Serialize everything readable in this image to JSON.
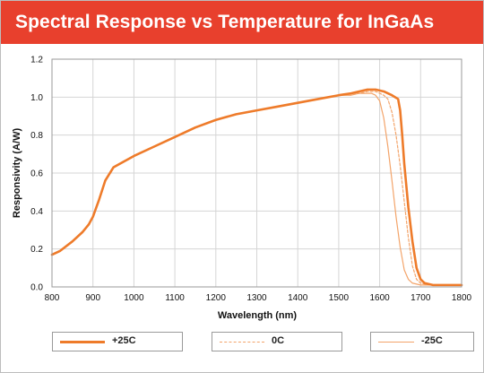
{
  "title": "Spectral Response vs Temperature for InGaAs",
  "colors": {
    "title_bg": "#e8402d",
    "line_25": "#ee7b2a",
    "line_0": "#f3a46a",
    "line_m25": "#f3a46a",
    "grid": "#d5d5d5"
  },
  "chart_data": {
    "type": "line",
    "title": "Spectral Response vs Temperature for InGaAs",
    "xlabel": "Wavelength (nm)",
    "ylabel": "Responsivity (A/W)",
    "xlim": [
      800,
      1800
    ],
    "ylim": [
      0.0,
      1.2
    ],
    "xticks": [
      "800",
      "900",
      "1000",
      "1100",
      "1200",
      "1300",
      "1400",
      "1500",
      "1600",
      "1700",
      "1800"
    ],
    "yticks": [
      "0.0",
      "0.2",
      "0.4",
      "0.6",
      "0.8",
      "1.0",
      "1.2"
    ],
    "grid": true,
    "legend_position": "bottom",
    "series": [
      {
        "name": "+25C",
        "style": "solid-thick",
        "x": [
          800,
          820,
          850,
          875,
          890,
          900,
          915,
          930,
          950,
          1000,
          1050,
          1100,
          1150,
          1200,
          1250,
          1300,
          1350,
          1400,
          1450,
          1500,
          1530,
          1550,
          1570,
          1590,
          1610,
          1630,
          1645,
          1650,
          1655,
          1660,
          1670,
          1680,
          1690,
          1700,
          1710,
          1730,
          1760,
          1800
        ],
        "y": [
          0.17,
          0.19,
          0.24,
          0.29,
          0.33,
          0.37,
          0.46,
          0.56,
          0.63,
          0.69,
          0.74,
          0.79,
          0.84,
          0.88,
          0.91,
          0.93,
          0.95,
          0.97,
          0.99,
          1.01,
          1.02,
          1.03,
          1.04,
          1.04,
          1.03,
          1.01,
          0.99,
          0.93,
          0.8,
          0.65,
          0.42,
          0.24,
          0.1,
          0.04,
          0.02,
          0.01,
          0.01,
          0.01
        ]
      },
      {
        "name": "0C",
        "style": "dashed",
        "x": [
          800,
          820,
          850,
          875,
          890,
          900,
          915,
          930,
          950,
          1000,
          1050,
          1100,
          1150,
          1200,
          1250,
          1300,
          1350,
          1400,
          1450,
          1500,
          1530,
          1550,
          1570,
          1590,
          1600,
          1610,
          1620,
          1630,
          1640,
          1650,
          1660,
          1670,
          1680,
          1690,
          1700,
          1720,
          1760,
          1800
        ],
        "y": [
          0.17,
          0.19,
          0.24,
          0.29,
          0.33,
          0.37,
          0.46,
          0.56,
          0.63,
          0.69,
          0.74,
          0.79,
          0.84,
          0.88,
          0.91,
          0.93,
          0.95,
          0.97,
          0.99,
          1.01,
          1.02,
          1.02,
          1.03,
          1.03,
          1.02,
          1.01,
          0.99,
          0.92,
          0.8,
          0.64,
          0.45,
          0.26,
          0.11,
          0.04,
          0.02,
          0.01,
          0.01,
          0.01
        ]
      },
      {
        "name": "-25C",
        "style": "solid-thin",
        "x": [
          800,
          820,
          850,
          875,
          890,
          900,
          915,
          930,
          950,
          1000,
          1050,
          1100,
          1150,
          1200,
          1250,
          1300,
          1350,
          1400,
          1450,
          1500,
          1530,
          1550,
          1570,
          1580,
          1590,
          1600,
          1610,
          1620,
          1630,
          1640,
          1650,
          1660,
          1670,
          1680,
          1700,
          1730,
          1760,
          1800
        ],
        "y": [
          0.17,
          0.19,
          0.24,
          0.29,
          0.33,
          0.37,
          0.46,
          0.56,
          0.63,
          0.69,
          0.74,
          0.79,
          0.84,
          0.88,
          0.91,
          0.93,
          0.95,
          0.97,
          0.99,
          1.01,
          1.01,
          1.02,
          1.02,
          1.02,
          1.01,
          0.98,
          0.89,
          0.74,
          0.56,
          0.37,
          0.21,
          0.09,
          0.04,
          0.02,
          0.01,
          0.01,
          0.01,
          0.01
        ]
      }
    ]
  }
}
